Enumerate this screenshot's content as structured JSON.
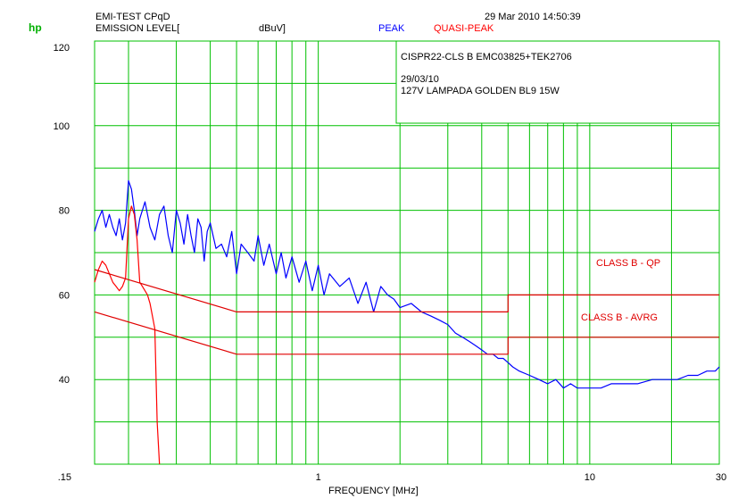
{
  "header": {
    "test_name": "EMI-TEST CPqD",
    "level_label": "EMISSION LEVEL[",
    "unit": "dBuV]",
    "peak_label": "PEAK",
    "qp_label": "QUASI-PEAK",
    "datetime": "29 Mar 2010  14:50:39",
    "logo": "hp"
  },
  "info_box": {
    "line1": "CISPR22-CLS B EMC03825+TEK2706",
    "line2": "29/03/10",
    "line3": "127V LAMPADA GOLDEN BL9 15W"
  },
  "colors": {
    "grid": "#00c000",
    "peak": "#0000ff",
    "quasi_peak": "#ff0000",
    "limit": "#e00000"
  },
  "chart_data": {
    "type": "line",
    "xscale": "log",
    "xlim": [
      0.15,
      30
    ],
    "ylim": [
      20,
      120
    ],
    "xlabel": "FREQUENCY [MHz]",
    "ylabel": "",
    "x_tick_labels": [
      ".15",
      "1",
      "10",
      "30"
    ],
    "x_ticks": [
      0.15,
      1,
      10,
      30
    ],
    "y_tick_labels": [
      "40",
      "60",
      "80",
      "100",
      "120"
    ],
    "y_ticks": [
      40,
      60,
      80,
      100,
      120
    ],
    "grid": true,
    "series": [
      {
        "name": "PEAK",
        "color": "#0000ff",
        "x": [
          0.15,
          0.155,
          0.16,
          0.165,
          0.17,
          0.175,
          0.18,
          0.185,
          0.19,
          0.195,
          0.2,
          0.205,
          0.21,
          0.215,
          0.22,
          0.23,
          0.24,
          0.25,
          0.26,
          0.27,
          0.28,
          0.29,
          0.3,
          0.31,
          0.32,
          0.33,
          0.34,
          0.35,
          0.36,
          0.37,
          0.38,
          0.39,
          0.4,
          0.42,
          0.44,
          0.46,
          0.48,
          0.5,
          0.52,
          0.55,
          0.58,
          0.6,
          0.63,
          0.66,
          0.7,
          0.73,
          0.76,
          0.8,
          0.85,
          0.9,
          0.95,
          1.0,
          1.05,
          1.1,
          1.2,
          1.3,
          1.4,
          1.5,
          1.6,
          1.7,
          1.8,
          1.9,
          2.0,
          2.2,
          2.4,
          2.6,
          2.8,
          3.0,
          3.2,
          3.4,
          3.6,
          3.8,
          4.0,
          4.2,
          4.4,
          4.6,
          4.8,
          5.0,
          5.2,
          5.5,
          6.0,
          6.5,
          7.0,
          7.5,
          8.0,
          8.5,
          9.0,
          9.5,
          10,
          11,
          12,
          13,
          14,
          15,
          17,
          19,
          21,
          23,
          25,
          27,
          29,
          30
        ],
        "values": [
          75,
          78,
          80,
          76,
          79,
          76,
          74,
          78,
          73,
          77,
          87,
          85,
          80,
          74,
          78,
          82,
          76,
          73,
          79,
          81,
          74,
          70,
          80,
          77,
          72,
          79,
          74,
          70,
          78,
          76,
          68,
          75,
          77,
          71,
          72,
          69,
          75,
          65,
          72,
          70,
          68,
          74,
          67,
          72,
          65,
          70,
          64,
          69,
          63,
          68,
          61,
          67,
          60,
          65,
          62,
          64,
          58,
          63,
          56,
          62,
          60,
          59,
          57,
          58,
          56,
          55,
          54,
          53,
          51,
          50,
          49,
          48,
          47,
          46,
          46,
          45,
          45,
          44,
          43,
          42,
          41,
          40,
          39,
          40,
          38,
          39,
          38,
          38,
          38,
          38,
          39,
          39,
          39,
          39,
          40,
          40,
          40,
          41,
          41,
          42,
          42,
          43
        ]
      },
      {
        "name": "QUASI-PEAK",
        "color": "#ff0000",
        "x": [
          0.15,
          0.155,
          0.16,
          0.165,
          0.17,
          0.175,
          0.18,
          0.185,
          0.19,
          0.195,
          0.2,
          0.205,
          0.21,
          0.215,
          0.22,
          0.225,
          0.23,
          0.235,
          0.24,
          0.25,
          0.255,
          0.26
        ],
        "values": [
          63,
          66,
          68,
          67,
          65,
          63,
          62,
          61,
          62,
          64,
          78,
          81,
          79,
          73,
          63,
          62,
          61,
          60,
          58,
          52,
          30,
          20
        ]
      },
      {
        "name": "CLASS B - QP",
        "color": "#e00000",
        "x": [
          0.15,
          0.5,
          5,
          5,
          30
        ],
        "values": [
          66,
          56,
          56,
          60,
          60
        ]
      },
      {
        "name": "CLASS B - AVRG",
        "color": "#e00000",
        "x": [
          0.15,
          0.5,
          5,
          5,
          30
        ],
        "values": [
          56,
          46,
          46,
          50,
          50
        ]
      }
    ],
    "annotations": [
      "CLASS B - QP",
      "CLASS B - AVRG"
    ]
  }
}
